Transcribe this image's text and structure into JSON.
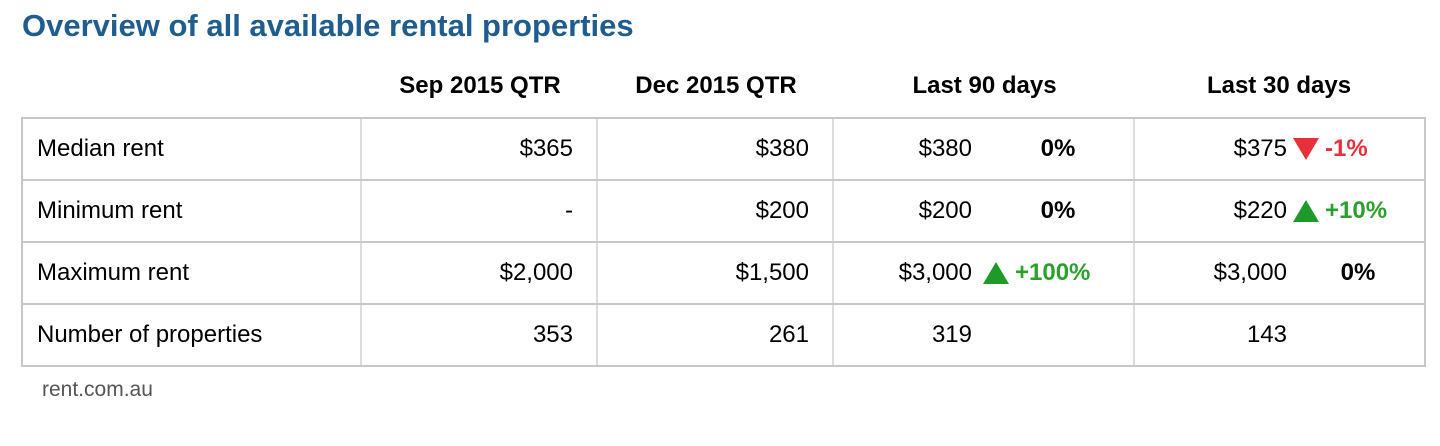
{
  "title": "Overview of all available rental properties",
  "columns": [
    "Sep 2015 QTR",
    "Dec 2015 QTR",
    "Last 90 days",
    "Last 30 days"
  ],
  "rows": [
    {
      "label": "Median rent",
      "sep": "$365",
      "dec": "$380",
      "last90": "$380",
      "last90_change": "0%",
      "last90_dir": "neutral",
      "last30": "$375",
      "last30_change": "-1%",
      "last30_dir": "down"
    },
    {
      "label": "Minimum rent",
      "sep": "-",
      "dec": "$200",
      "last90": "$200",
      "last90_change": "0%",
      "last90_dir": "neutral",
      "last30": "$220",
      "last30_change": "+10%",
      "last30_dir": "up"
    },
    {
      "label": "Maximum rent",
      "sep": "$2,000",
      "dec": "$1,500",
      "last90": "$3,000",
      "last90_change": "+100%",
      "last90_dir": "up",
      "last30": "$3,000",
      "last30_change": "0%",
      "last30_dir": "neutral"
    },
    {
      "label": "Number of properties",
      "sep": "353",
      "dec": "261",
      "last90": "319",
      "last90_change": "",
      "last90_dir": "none",
      "last30": "143",
      "last30_change": "",
      "last30_dir": "none"
    }
  ],
  "colors": {
    "title": "#1f5d8f",
    "up": "#2ca02c",
    "down": "#e8303a",
    "grid": "#c8c8c8"
  },
  "icons": {
    "up": "triangle-up-icon",
    "down": "triangle-down-icon"
  },
  "source": "rent.com.au"
}
